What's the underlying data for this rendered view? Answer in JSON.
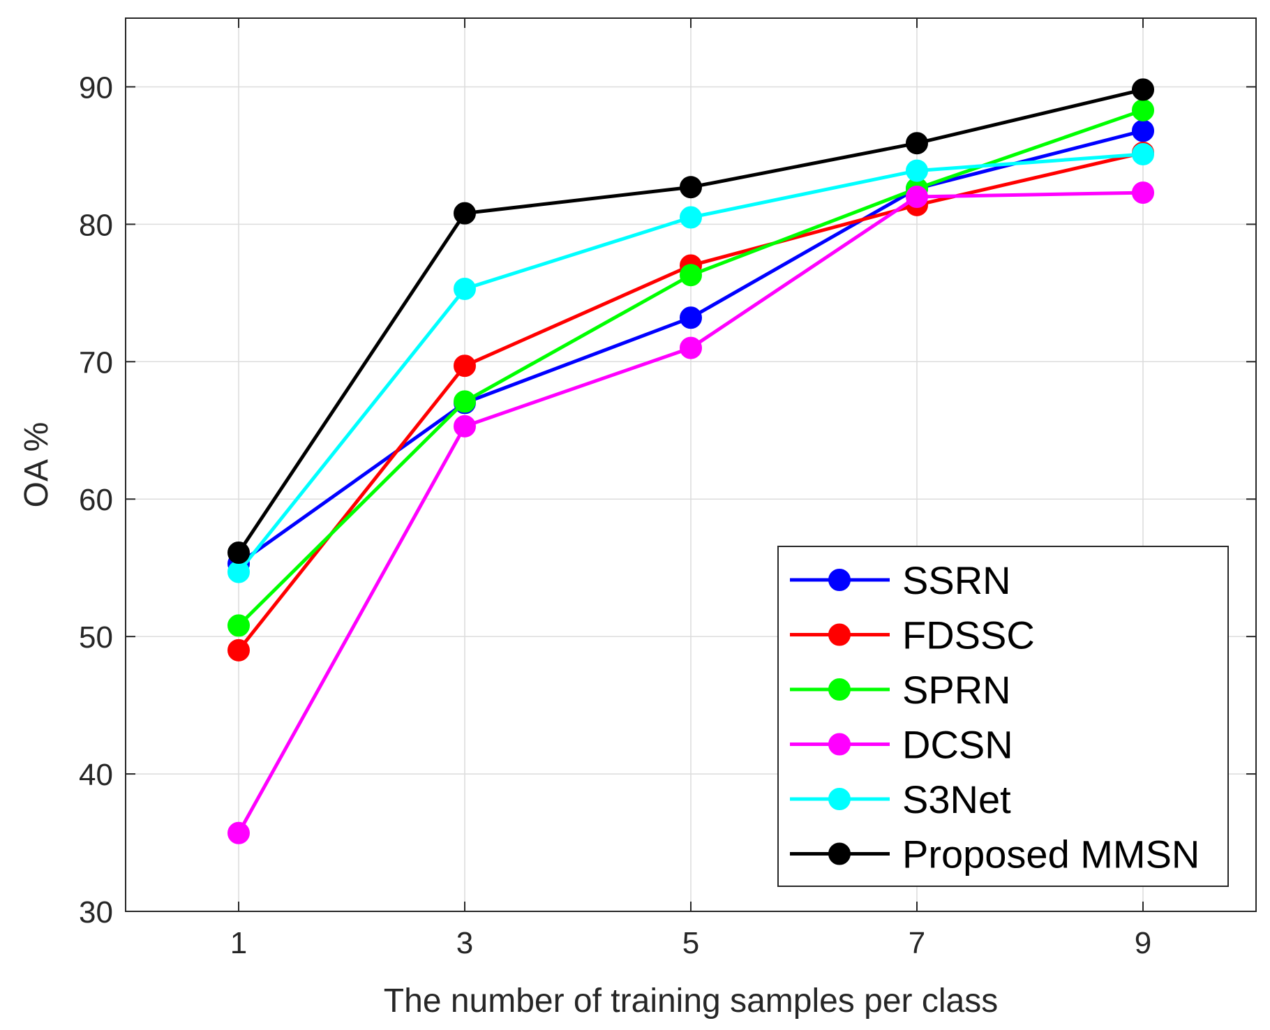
{
  "chart_data": {
    "type": "line",
    "title": "",
    "xlabel": "The number of training samples per class",
    "ylabel": "OA %",
    "x": [
      1,
      3,
      5,
      7,
      9
    ],
    "xlim": [
      0,
      10
    ],
    "ylim": [
      30,
      95
    ],
    "xticks": [
      1,
      3,
      5,
      7,
      9
    ],
    "yticks": [
      30,
      40,
      50,
      60,
      70,
      80,
      90
    ],
    "grid": true,
    "legend_position": "bottom-right",
    "series": [
      {
        "name": "SSRN",
        "color": "#0000ff",
        "values": [
          55.3,
          67.0,
          73.2,
          82.6,
          86.8
        ]
      },
      {
        "name": "FDSSC",
        "color": "#ff0000",
        "values": [
          49.0,
          69.7,
          77.0,
          81.4,
          85.2
        ]
      },
      {
        "name": "SPRN",
        "color": "#00ff00",
        "values": [
          50.8,
          67.1,
          76.3,
          82.6,
          88.3
        ]
      },
      {
        "name": "DCSN",
        "color": "#ff00ff",
        "values": [
          35.7,
          65.3,
          71.0,
          82.0,
          82.3
        ]
      },
      {
        "name": "S3Net",
        "color": "#00ffff",
        "values": [
          54.7,
          75.3,
          80.5,
          83.9,
          85.1
        ]
      },
      {
        "name": "Proposed MMSN",
        "color": "#000000",
        "values": [
          56.1,
          80.8,
          82.7,
          85.9,
          89.8
        ]
      }
    ]
  }
}
